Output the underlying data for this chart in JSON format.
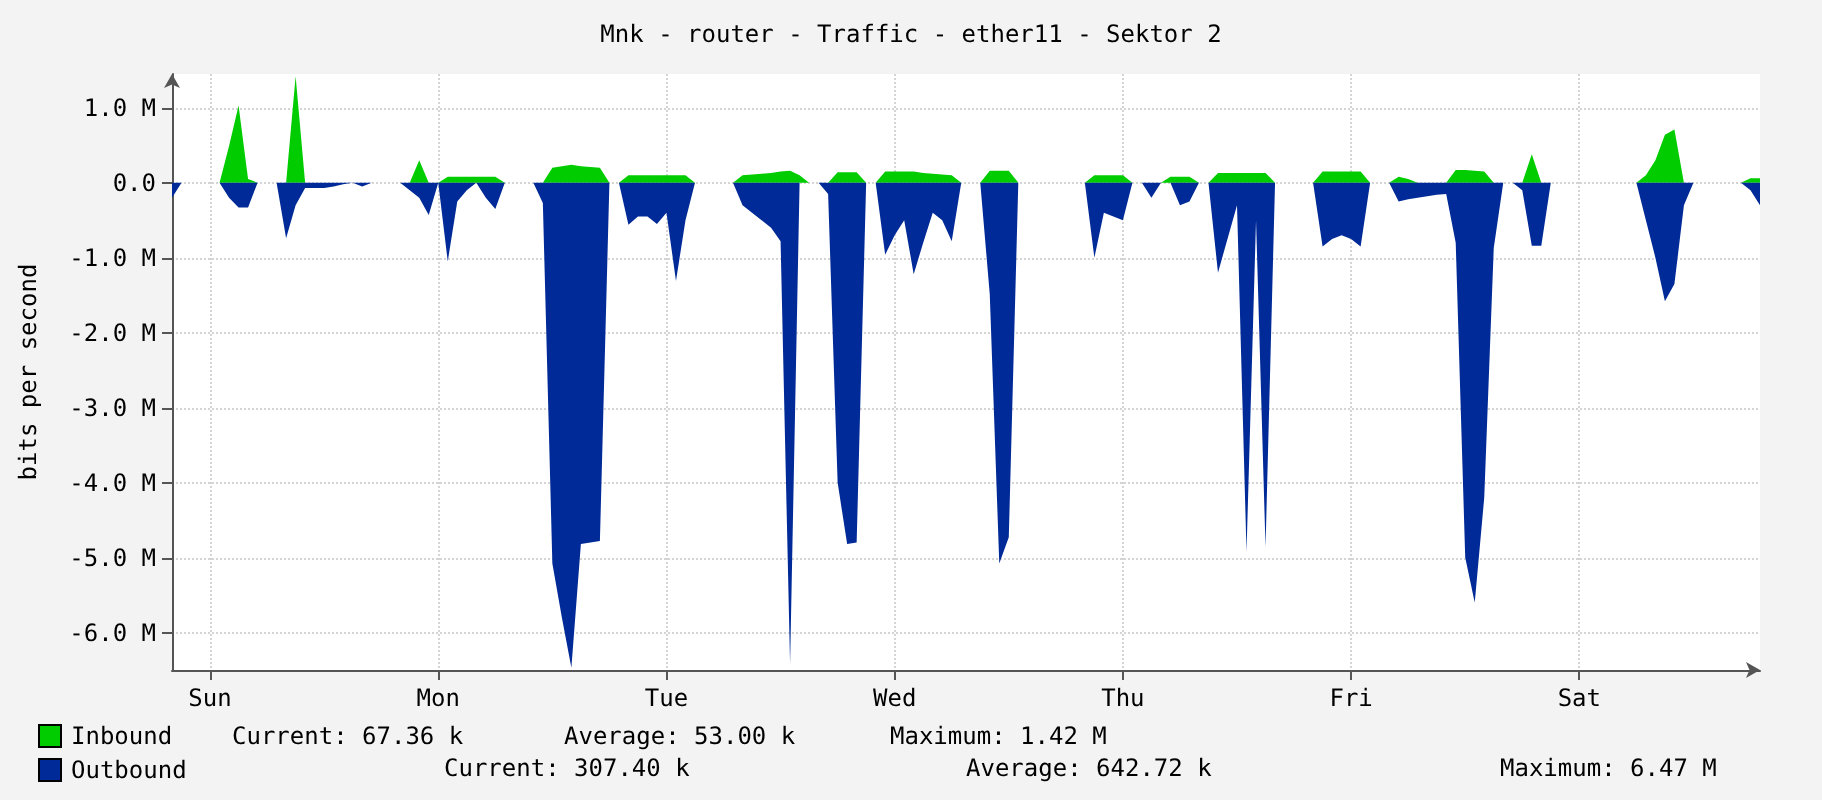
{
  "chart_data": {
    "type": "area",
    "title": "Mnk - router - Traffic - ether11 - Sektor 2",
    "ylabel": "bits per second",
    "categories": [
      null,
      null,
      null,
      null,
      "Sun",
      null,
      null,
      null,
      null,
      null,
      null,
      null,
      null,
      null,
      null,
      null,
      null,
      null,
      null,
      null,
      null,
      null,
      null,
      null,
      null,
      null,
      null,
      null,
      "Mon",
      null,
      null,
      null,
      null,
      null,
      null,
      null,
      null,
      null,
      null,
      null,
      null,
      null,
      null,
      null,
      null,
      null,
      null,
      null,
      null,
      null,
      null,
      null,
      "Tue",
      null,
      null,
      null,
      null,
      null,
      null,
      null,
      null,
      null,
      null,
      null,
      null,
      null,
      null,
      null,
      null,
      null,
      null,
      null,
      null,
      null,
      null,
      null,
      "Wed",
      null,
      null,
      null,
      null,
      null,
      null,
      null,
      null,
      null,
      null,
      null,
      null,
      null,
      null,
      null,
      null,
      null,
      null,
      null,
      null,
      null,
      null,
      null,
      "Thu",
      null,
      null,
      null,
      null,
      null,
      null,
      null,
      null,
      null,
      null,
      null,
      null,
      null,
      null,
      null,
      null,
      null,
      null,
      null,
      null,
      null,
      null,
      null,
      "Fri",
      null,
      null,
      null,
      null,
      null,
      null,
      null,
      null,
      null,
      null,
      null,
      null,
      null,
      null,
      null,
      null,
      null,
      null,
      null,
      null,
      null,
      null,
      null,
      "Sat",
      null,
      null,
      null,
      null,
      null,
      null,
      null,
      null,
      null,
      null,
      null,
      null,
      null,
      null,
      null,
      null,
      null,
      null,
      null
    ],
    "ylim": [
      -6.5,
      1.45
    ],
    "yticks": [
      {
        "value": 1,
        "label": "1.0 M"
      },
      {
        "value": 0,
        "label": "0.0"
      },
      {
        "value": -1,
        "label": "-1.0 M"
      },
      {
        "value": -2,
        "label": "-2.0 M"
      },
      {
        "value": -3,
        "label": "-3.0 M"
      },
      {
        "value": -4,
        "label": "-4.0 M"
      },
      {
        "value": -5,
        "label": "-5.0 M"
      },
      {
        "value": -6,
        "label": "-6.0 M"
      }
    ],
    "grid": true,
    "legend": "bottom left",
    "annotations": [
      "Current: 67.36 k",
      "Average: 53.00 k",
      "Maximum: 1.42 M",
      "Current: 307.40 k",
      "Average: 642.72 k",
      "Maximum: 6.47 M"
    ],
    "series": [
      {
        "name": "Inbound",
        "color": "#00cc00",
        "values": [
          0,
          0,
          0,
          0,
          0,
          0,
          0.49,
          1.03,
          0.05,
          0,
          0,
          0,
          0,
          1.42,
          0,
          0,
          0,
          0,
          0,
          0,
          0,
          0,
          0,
          0,
          0,
          0,
          0.3,
          0,
          0,
          0.08,
          0.08,
          0.08,
          0.08,
          0.08,
          0.08,
          0,
          0,
          0,
          0,
          0,
          0.2,
          0.22,
          0.24,
          0.22,
          0.21,
          0.2,
          0,
          0,
          0.1,
          0.1,
          0.1,
          0.1,
          0.1,
          0.1,
          0.1,
          0,
          0,
          0,
          0,
          0,
          0.1,
          0.11,
          0.12,
          0.13,
          0.15,
          0.16,
          0.1,
          0,
          0,
          0,
          0.14,
          0.14,
          0.14,
          0,
          0,
          0.15,
          0.15,
          0.15,
          0.15,
          0.13,
          0.12,
          0.11,
          0.1,
          0,
          0,
          0,
          0.16,
          0.16,
          0.16,
          0,
          0,
          0,
          0,
          0,
          0,
          0,
          0,
          0.1,
          0.1,
          0.1,
          0.1,
          0,
          0,
          0,
          0,
          0.08,
          0.08,
          0.08,
          0,
          0,
          0.13,
          0.13,
          0.13,
          0.13,
          0.13,
          0.13,
          0,
          0,
          0,
          0,
          0,
          0.15,
          0.15,
          0.15,
          0.15,
          0.15,
          0,
          0,
          0,
          0.08,
          0.05,
          0,
          0,
          0,
          0,
          0.17,
          0.17,
          0.16,
          0.15,
          0,
          0,
          0,
          0,
          0.38,
          0,
          0,
          0,
          0,
          0,
          0,
          0,
          0,
          0,
          0,
          0,
          0.1,
          0.3,
          0.64,
          0.71,
          0,
          0,
          0,
          0,
          0,
          0,
          0,
          0.06,
          0.06
        ]
      },
      {
        "name": "Outbound",
        "color": "#002a97",
        "values": [
          -0.2,
          0,
          0,
          0,
          0,
          0,
          -0.2,
          -0.33,
          -0.33,
          0,
          0,
          0,
          -0.74,
          -0.3,
          -0.07,
          -0.07,
          -0.07,
          -0.05,
          -0.02,
          0,
          -0.05,
          0,
          0,
          0,
          0,
          -0.1,
          -0.2,
          -0.43,
          0,
          -1.05,
          -0.25,
          -0.1,
          0,
          -0.2,
          -0.35,
          0,
          0,
          0,
          0,
          -0.27,
          -5.08,
          -5.8,
          -6.47,
          -4.82,
          -4.8,
          -4.78,
          0,
          0,
          -0.56,
          -0.45,
          -0.45,
          -0.55,
          -0.4,
          -1.31,
          -0.5,
          0,
          0,
          0,
          0,
          0,
          -0.3,
          -0.4,
          -0.5,
          -0.6,
          -0.78,
          -6.42,
          0,
          0,
          0,
          -0.15,
          -4.0,
          -4.82,
          -4.8,
          0,
          0,
          -0.96,
          -0.7,
          -0.5,
          -1.22,
          -0.8,
          -0.4,
          -0.5,
          -0.78,
          0,
          0,
          0,
          -1.49,
          -5.08,
          -4.73,
          0,
          0,
          0,
          0,
          0,
          0,
          0,
          0,
          -1.0,
          -0.4,
          -0.45,
          -0.5,
          0,
          0,
          -0.2,
          0,
          0,
          -0.3,
          -0.25,
          0,
          0,
          -1.2,
          -0.75,
          -0.3,
          -4.92,
          -0.5,
          -4.86,
          0,
          0,
          0,
          0,
          0,
          -0.85,
          -0.75,
          -0.7,
          -0.75,
          -0.85,
          0,
          0,
          0,
          -0.25,
          -0.22,
          -0.2,
          -0.18,
          -0.16,
          -0.15,
          -0.8,
          -5.0,
          -5.6,
          -4.2,
          -0.87,
          0,
          0,
          -0.1,
          -0.84,
          -0.84,
          0,
          0,
          0,
          0,
          0,
          0,
          0,
          0,
          0,
          0,
          -0.5,
          -1.0,
          -1.58,
          -1.35,
          -0.3,
          0,
          0,
          0,
          0,
          0,
          0,
          -0.1,
          -0.3
        ]
      }
    ]
  }
}
